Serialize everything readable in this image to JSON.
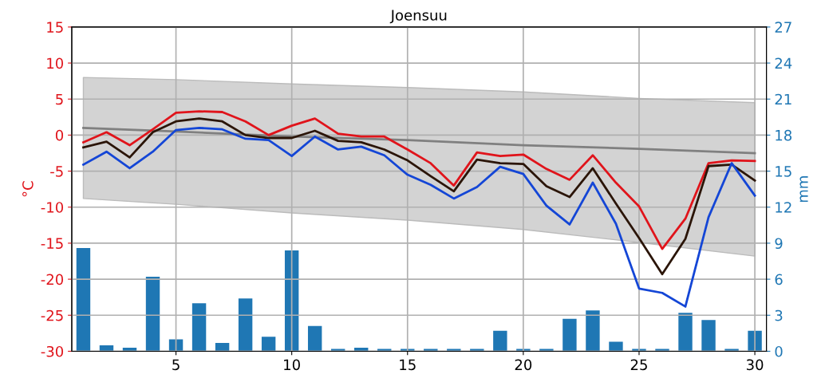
{
  "chart_data": {
    "type": "line",
    "title": "Joensuu",
    "ylabel": "°C",
    "y2label": "mm",
    "xlim": [
      0.5,
      30.5
    ],
    "xticks": [
      5,
      10,
      15,
      20,
      25,
      30
    ],
    "ylim": [
      -30,
      15
    ],
    "yticks": [
      -30,
      -25,
      -20,
      -15,
      -10,
      -5,
      0,
      5,
      10,
      15
    ],
    "y2lim": [
      0,
      27
    ],
    "y2ticks": [
      0,
      3,
      6,
      9,
      12,
      15,
      18,
      21,
      24,
      27
    ],
    "grid": true,
    "legend": false,
    "marker": "none",
    "line_style": "solid",
    "series": [
      {
        "color": "#808080",
        "x": [
          1,
          5,
          10,
          15,
          20,
          25,
          30
        ],
        "values": [
          1.0,
          0.5,
          -0.2,
          -0.7,
          -1.4,
          -1.9,
          -2.5
        ],
        "lower": [
          -8.8,
          -9.6,
          -10.8,
          -11.8,
          -13.1,
          -14.9,
          -16.8
        ],
        "upper": [
          8.0,
          7.7,
          7.1,
          6.6,
          6.0,
          5.1,
          4.5
        ]
      },
      {
        "type": "bar",
        "axis": "y2",
        "color": "#1f77b4",
        "x": [
          1,
          2,
          3,
          4,
          5,
          6,
          7,
          8,
          9,
          10,
          11,
          12,
          13,
          14,
          15,
          16,
          17,
          18,
          19,
          20,
          21,
          22,
          23,
          24,
          25,
          26,
          27,
          28,
          29,
          30
        ],
        "values": [
          8.6,
          0.5,
          0.3,
          6.2,
          1.0,
          4.0,
          0.7,
          4.4,
          1.2,
          8.4,
          2.1,
          0.2,
          0.3,
          0.2,
          0.2,
          0.2,
          0.2,
          0.2,
          1.7,
          0.2,
          0.2,
          2.7,
          3.4,
          0.8,
          0.2,
          0.2,
          3.2,
          2.6,
          0.2,
          1.7
        ]
      },
      {
        "color": "#e0141b",
        "x": [
          1,
          2,
          3,
          4,
          5,
          6,
          7,
          8,
          9,
          10,
          11,
          12,
          13,
          14,
          15,
          16,
          17,
          18,
          19,
          20,
          21,
          22,
          23,
          24,
          25,
          26,
          27,
          28,
          29,
          30
        ],
        "values": [
          -1.0,
          0.4,
          -1.4,
          0.8,
          3.1,
          3.3,
          3.2,
          1.9,
          0.0,
          1.3,
          2.3,
          0.2,
          -0.2,
          -0.2,
          -2.0,
          -3.9,
          -7.0,
          -2.4,
          -2.9,
          -2.7,
          -4.7,
          -6.2,
          -2.8,
          -6.6,
          -9.9,
          -15.8,
          -11.6,
          -3.9,
          -3.5,
          -3.6
        ]
      },
      {
        "color": "#2b1508",
        "x": [
          1,
          2,
          3,
          4,
          5,
          6,
          7,
          8,
          9,
          10,
          11,
          12,
          13,
          14,
          15,
          16,
          17,
          18,
          19,
          20,
          21,
          22,
          23,
          24,
          25,
          26,
          27,
          28,
          29,
          30
        ],
        "values": [
          -1.7,
          -0.9,
          -3.1,
          0.4,
          1.9,
          2.3,
          1.9,
          0.0,
          -0.4,
          -0.4,
          0.6,
          -0.8,
          -1.0,
          -2.0,
          -3.5,
          -5.7,
          -7.8,
          -3.4,
          -3.9,
          -4.0,
          -7.1,
          -8.6,
          -4.6,
          -9.5,
          -14.3,
          -19.3,
          -14.4,
          -4.3,
          -4.1,
          -6.3
        ]
      },
      {
        "color": "#1446d6",
        "x": [
          1,
          2,
          3,
          4,
          5,
          6,
          7,
          8,
          9,
          10,
          11,
          12,
          13,
          14,
          15,
          16,
          17,
          18,
          19,
          20,
          21,
          22,
          23,
          24,
          25,
          26,
          27,
          28,
          29,
          30
        ],
        "values": [
          -4.1,
          -2.3,
          -4.6,
          -2.3,
          0.7,
          1.0,
          0.8,
          -0.5,
          -0.7,
          -2.9,
          -0.2,
          -2.0,
          -1.6,
          -2.8,
          -5.5,
          -6.9,
          -8.8,
          -7.2,
          -4.4,
          -5.4,
          -9.8,
          -12.4,
          -6.6,
          -12.3,
          -21.3,
          -21.9,
          -23.8,
          -11.4,
          -3.9,
          -8.4
        ]
      }
    ]
  }
}
